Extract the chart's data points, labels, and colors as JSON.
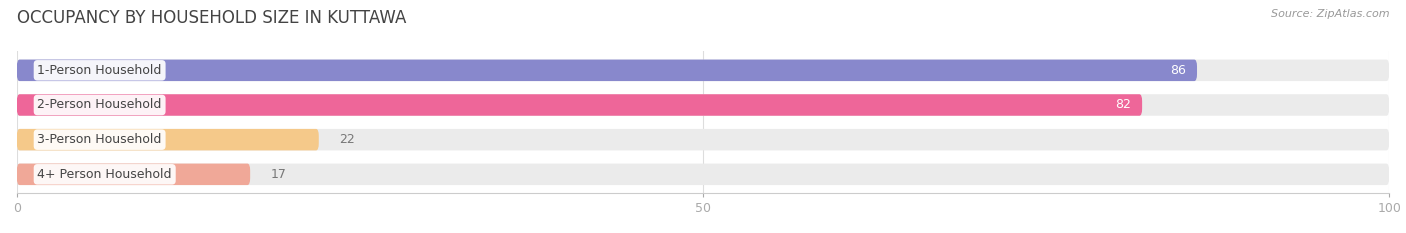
{
  "title": "OCCUPANCY BY HOUSEHOLD SIZE IN KUTTAWA",
  "source": "Source: ZipAtlas.com",
  "categories": [
    "1-Person Household",
    "2-Person Household",
    "3-Person Household",
    "4+ Person Household"
  ],
  "values": [
    86,
    82,
    22,
    17
  ],
  "bar_colors": [
    "#8888cc",
    "#ee6699",
    "#f5c98a",
    "#f0a898"
  ],
  "bar_bg_color": "#ebebeb",
  "xlim": [
    0,
    100
  ],
  "xticks": [
    0,
    50,
    100
  ],
  "bar_height": 0.62,
  "label_colors": [
    "white",
    "white",
    "#888888",
    "#888888"
  ],
  "fig_bg_color": "#ffffff",
  "title_fontsize": 12,
  "source_fontsize": 8,
  "value_fontsize": 9,
  "category_fontsize": 9
}
